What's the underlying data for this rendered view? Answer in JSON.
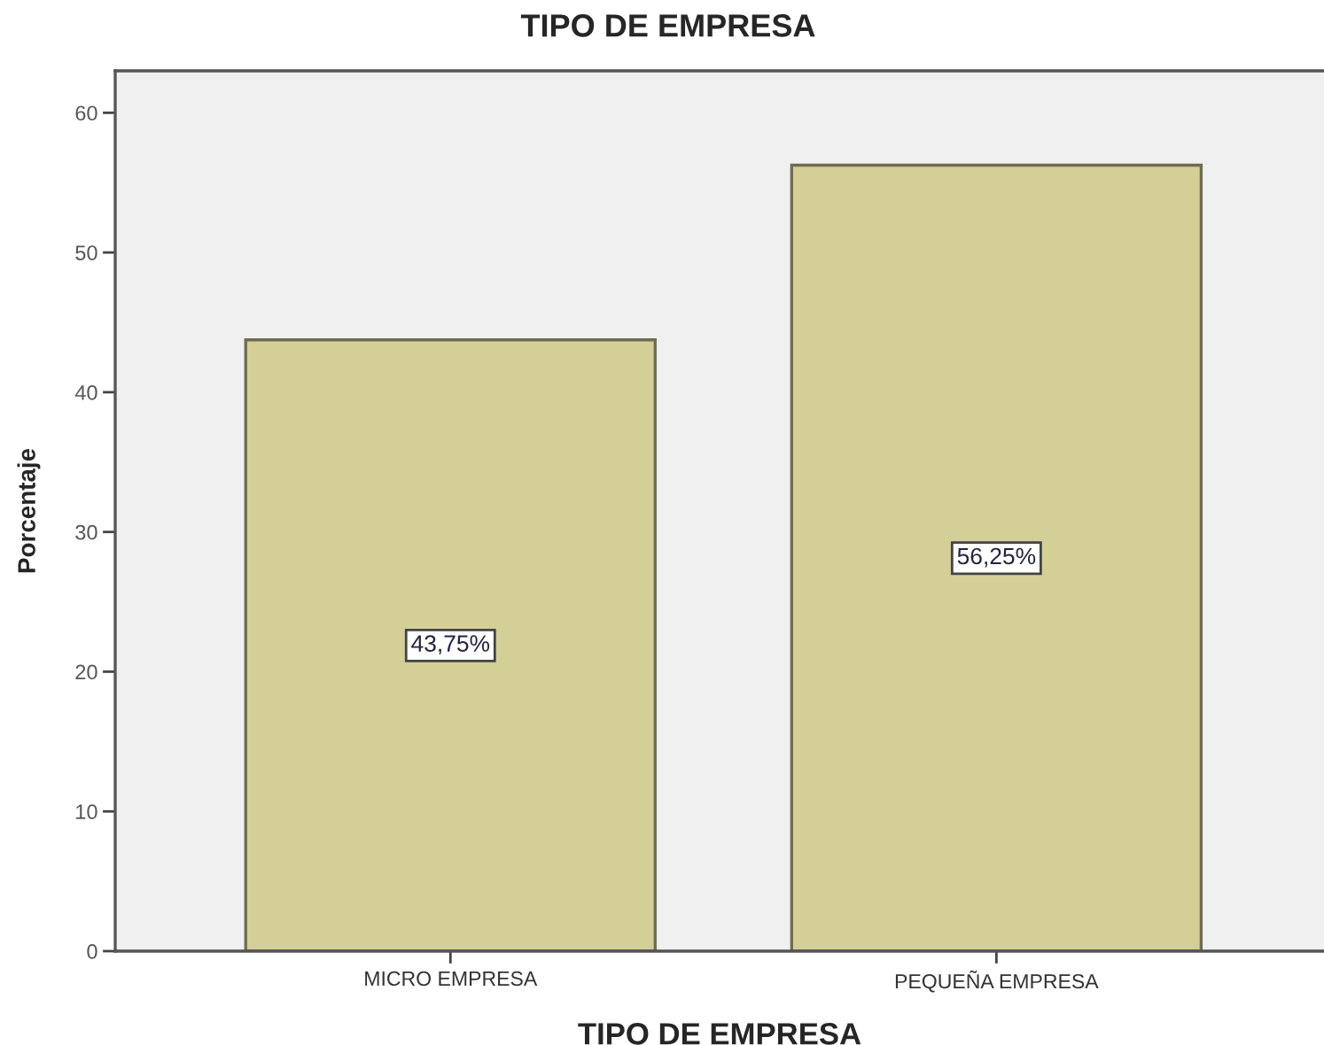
{
  "chart_data": {
    "type": "bar",
    "title": "TIPO DE EMPRESA",
    "xlabel": "TIPO DE EMPRESA",
    "ylabel": "Porcentaje",
    "categories": [
      "MICRO EMPRESA",
      "PEQUEÑA EMPRESA"
    ],
    "values": [
      43.75,
      56.25
    ],
    "value_labels": [
      "43,75%",
      "56,25%"
    ],
    "color": "#d3cf97",
    "ylim": [
      0,
      63
    ],
    "yticks": [
      0,
      10,
      20,
      30,
      40,
      50,
      60
    ],
    "grid": false
  }
}
